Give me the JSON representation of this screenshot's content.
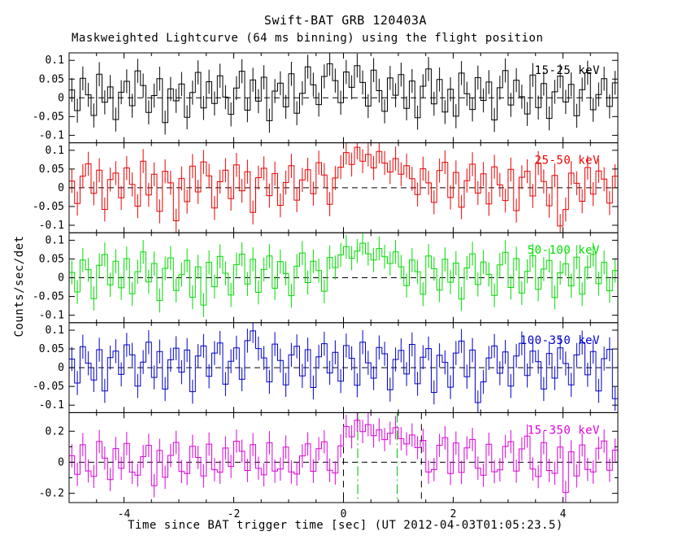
{
  "title": "Swift-BAT GRB 120403A",
  "subtitle": "Maskweighted Lightcurve (64 ms binning) using the flight position",
  "xlabel": "Time since BAT trigger time [sec] (UT 2012-04-03T01:05:23.5)",
  "ylabel": "Counts/sec/det",
  "chart_data": {
    "type": "line",
    "style": "histogram-steps-with-errorbars",
    "x_range": [
      -5,
      5
    ],
    "xticks": [
      [
        -4,
        "-4"
      ],
      [
        -2,
        "-2"
      ],
      [
        0,
        "0"
      ],
      [
        2,
        "2"
      ],
      [
        4,
        "4"
      ]
    ],
    "xminor": [
      -4.5,
      -3.5,
      -3,
      -2.5,
      -1.5,
      -1,
      -0.5,
      0.5,
      1,
      1.5,
      2.5,
      3,
      3.5,
      4.5
    ],
    "vlines": [
      {
        "x": 0.0,
        "color": "#000000",
        "dash": "8 6",
        "panel": 4
      },
      {
        "x": 1.42,
        "color": "#000000",
        "dash": "8 6",
        "panel": 4
      },
      {
        "x": 0.26,
        "color": "#00b400",
        "dash": "12 4 2 4",
        "panel": 4
      },
      {
        "x": 0.98,
        "color": "#00b400",
        "dash": "12 4 2 4",
        "panel": 4
      }
    ],
    "panels": [
      {
        "label": "15-25 keV",
        "color": "#000000",
        "ylim": [
          -0.12,
          0.12
        ],
        "err": 0.032,
        "yticks": [
          [
            0.1,
            "0.1"
          ],
          [
            0.05,
            "0.05"
          ],
          [
            0,
            "0"
          ],
          [
            -0.05,
            "-0.05"
          ],
          [
            -0.1,
            "-0.1"
          ]
        ],
        "yminor": [],
        "values": [
          0.021,
          -0.034,
          0.052,
          0.008,
          -0.047,
          0.063,
          -0.012,
          0.029,
          -0.058,
          0.015,
          0.044,
          -0.021,
          0.072,
          0.033,
          -0.039,
          0.006,
          0.051,
          -0.066,
          0.024,
          -0.008,
          0.037,
          -0.052,
          0.014,
          0.068,
          -0.027,
          0.043,
          -0.015,
          0.059,
          0.002,
          -0.044,
          0.026,
          0.071,
          -0.033,
          0.048,
          -0.009,
          0.055,
          -0.061,
          0.018,
          0.039,
          -0.024,
          0.064,
          -0.041,
          0.012,
          0.083,
          0.035,
          -0.018,
          0.057,
          0.091,
          0.046,
          -0.013,
          0.069,
          0.028,
          0.086,
          0.041,
          -0.022,
          0.074,
          0.019,
          -0.036,
          0.053,
          0.007,
          0.062,
          -0.028,
          0.045,
          -0.053,
          0.031,
          0.077,
          -0.016,
          0.049,
          -0.038,
          0.023,
          -0.049,
          0.066,
          0.011,
          -0.031,
          0.054,
          -0.007,
          0.042,
          -0.059,
          0.027,
          0.073,
          -0.019,
          0.047,
          0.003,
          -0.043,
          0.061,
          -0.026,
          0.038,
          -0.055,
          0.016,
          0.058,
          -0.011,
          0.036,
          -0.048,
          0.022,
          0.067,
          -0.032,
          0.009,
          0.051,
          -0.023,
          0.04
        ]
      },
      {
        "label": "25-50 keV",
        "color": "#ee0000",
        "ylim": [
          -0.12,
          0.12
        ],
        "err": 0.032,
        "yticks": [
          [
            0.1,
            "0.1"
          ],
          [
            0.05,
            "0.05"
          ],
          [
            0,
            "0"
          ],
          [
            -0.05,
            "-0.05"
          ],
          [
            -0.1,
            "-0.1"
          ]
        ],
        "yminor": [],
        "values": [
          0.018,
          -0.042,
          0.031,
          0.064,
          -0.015,
          0.047,
          -0.058,
          0.022,
          0.039,
          -0.027,
          0.053,
          0.009,
          -0.049,
          0.071,
          -0.019,
          0.036,
          -0.063,
          0.044,
          0.013,
          -0.088,
          0.025,
          -0.037,
          0.058,
          -0.011,
          0.069,
          0.032,
          -0.054,
          0.016,
          0.047,
          -0.029,
          0.061,
          -0.008,
          0.043,
          -0.066,
          0.027,
          0.052,
          -0.021,
          0.038,
          -0.047,
          0.014,
          0.059,
          -0.033,
          0.021,
          0.048,
          -0.016,
          0.067,
          0.034,
          -0.044,
          0.026,
          0.055,
          0.094,
          0.062,
          0.108,
          0.071,
          0.089,
          0.053,
          0.097,
          0.066,
          0.042,
          0.078,
          0.036,
          0.059,
          0.024,
          -0.018,
          0.051,
          0.013,
          -0.039,
          0.046,
          0.068,
          -0.026,
          0.041,
          -0.052,
          0.019,
          0.063,
          -0.014,
          0.037,
          -0.043,
          0.056,
          0.008,
          -0.034,
          0.049,
          -0.061,
          0.028,
          0.044,
          -0.022,
          0.066,
          0.017,
          -0.048,
          0.033,
          -0.102,
          -0.058,
          0.039,
          0.012,
          -0.036,
          0.054,
          -0.017,
          0.045,
          0.023,
          -0.041,
          0.031
        ]
      },
      {
        "label": "50-100 keV",
        "color": "#00dd00",
        "ylim": [
          -0.12,
          0.12
        ],
        "err": 0.032,
        "yticks": [
          [
            0.1,
            "0.1"
          ],
          [
            0.05,
            "0.05"
          ],
          [
            0,
            "0"
          ],
          [
            -0.05,
            "-0.05"
          ],
          [
            -0.1,
            "-0.1"
          ]
        ],
        "yminor": [],
        "values": [
          0.014,
          -0.038,
          0.047,
          0.021,
          -0.056,
          0.033,
          0.062,
          -0.019,
          0.044,
          -0.027,
          0.051,
          -0.043,
          0.016,
          0.069,
          -0.011,
          0.038,
          -0.061,
          0.025,
          0.053,
          -0.034,
          0.008,
          0.046,
          -0.052,
          0.029,
          -0.073,
          0.041,
          -0.024,
          0.057,
          0.012,
          -0.046,
          0.035,
          0.063,
          -0.017,
          0.049,
          -0.039,
          0.022,
          0.058,
          -0.028,
          0.043,
          0.011,
          -0.048,
          0.031,
          0.066,
          -0.013,
          0.044,
          0.019,
          -0.036,
          0.054,
          0.027,
          0.061,
          0.083,
          0.052,
          0.071,
          0.092,
          0.064,
          0.047,
          0.078,
          0.056,
          0.038,
          0.069,
          0.029,
          -0.021,
          0.047,
          0.016,
          -0.044,
          0.058,
          0.024,
          -0.033,
          0.049,
          -0.012,
          0.039,
          -0.057,
          0.026,
          0.064,
          -0.018,
          0.042,
          0.009,
          -0.047,
          0.034,
          0.068,
          -0.026,
          0.051,
          -0.041,
          0.017,
          0.059,
          -0.031,
          0.023,
          0.046,
          -0.053,
          0.013,
          0.037,
          -0.022,
          0.055,
          -0.044,
          0.028,
          0.062,
          -0.016,
          0.041,
          -0.035,
          0.019
        ]
      },
      {
        "label": "100-350 keV",
        "color": "#0000cc",
        "ylim": [
          -0.12,
          0.12
        ],
        "err": 0.032,
        "yticks": [
          [
            0.1,
            "0.1"
          ],
          [
            0.05,
            "0.05"
          ],
          [
            0,
            "0"
          ],
          [
            -0.05,
            "-0.05"
          ],
          [
            -0.1,
            "-0.1"
          ]
        ],
        "yminor": [],
        "values": [
          0.023,
          -0.041,
          0.056,
          0.012,
          -0.033,
          0.048,
          -0.062,
          0.027,
          0.044,
          -0.018,
          0.061,
          0.034,
          -0.049,
          0.015,
          0.068,
          -0.026,
          0.043,
          -0.057,
          0.021,
          0.052,
          -0.012,
          0.047,
          -0.064,
          0.031,
          0.058,
          -0.023,
          0.039,
          0.066,
          -0.044,
          0.017,
          0.053,
          -0.031,
          0.072,
          0.098,
          0.051,
          0.026,
          -0.038,
          0.063,
          0.019,
          -0.046,
          0.034,
          0.057,
          -0.022,
          0.048,
          -0.053,
          0.029,
          0.064,
          -0.014,
          0.041,
          -0.036,
          0.059,
          0.025,
          -0.047,
          0.068,
          0.013,
          -0.028,
          0.054,
          0.037,
          -0.059,
          0.022,
          0.046,
          -0.017,
          0.062,
          -0.043,
          0.028,
          0.051,
          -0.066,
          0.033,
          0.014,
          -0.052,
          0.039,
          0.071,
          -0.024,
          0.047,
          -0.093,
          -0.038,
          0.026,
          0.058,
          -0.015,
          0.042,
          -0.049,
          0.031,
          0.065,
          -0.021,
          0.044,
          0.016,
          -0.057,
          0.038,
          -0.028,
          0.053,
          0.011,
          -0.046,
          0.034,
          0.067,
          -0.019,
          0.043,
          -0.062,
          0.024,
          0.049,
          -0.083
        ]
      },
      {
        "label": "15-350 keV",
        "color": "#dd00dd",
        "ylim": [
          -0.26,
          0.32
        ],
        "err": 0.075,
        "yticks": [
          [
            0.2,
            "0.2"
          ],
          [
            0,
            "0"
          ],
          [
            -0.2,
            "-0.2"
          ]
        ],
        "yminor": [
          0.1,
          -0.1
        ],
        "values": [
          0.042,
          -0.078,
          0.113,
          -0.056,
          -0.091,
          0.134,
          0.027,
          -0.112,
          0.088,
          -0.039,
          0.121,
          -0.064,
          -0.083,
          0.037,
          0.109,
          -0.151,
          0.076,
          -0.097,
          0.044,
          0.128,
          -0.059,
          -0.072,
          0.103,
          0.031,
          -0.088,
          0.117,
          -0.048,
          -0.064,
          0.092,
          -0.027,
          0.136,
          0.071,
          -0.053,
          0.114,
          -0.039,
          -0.081,
          0.126,
          -0.057,
          -0.044,
          0.098,
          -0.063,
          -0.076,
          0.041,
          0.119,
          -0.058,
          0.087,
          0.132,
          -0.052,
          -0.069,
          0.106,
          0.231,
          0.164,
          0.272,
          0.198,
          0.243,
          0.171,
          0.209,
          0.146,
          0.187,
          0.223,
          0.152,
          0.118,
          0.176,
          0.094,
          0.141,
          -0.063,
          -0.047,
          0.109,
          0.158,
          -0.072,
          0.124,
          -0.066,
          0.093,
          0.147,
          -0.038,
          -0.084,
          0.116,
          -0.061,
          -0.049,
          0.102,
          0.133,
          -0.057,
          0.086,
          0.169,
          -0.044,
          -0.092,
          0.127,
          -0.053,
          -0.071,
          0.098,
          -0.195,
          0.067,
          -0.088,
          0.112,
          -0.046,
          -0.063,
          0.091,
          0.137,
          -0.052,
          0.078
        ]
      }
    ]
  }
}
